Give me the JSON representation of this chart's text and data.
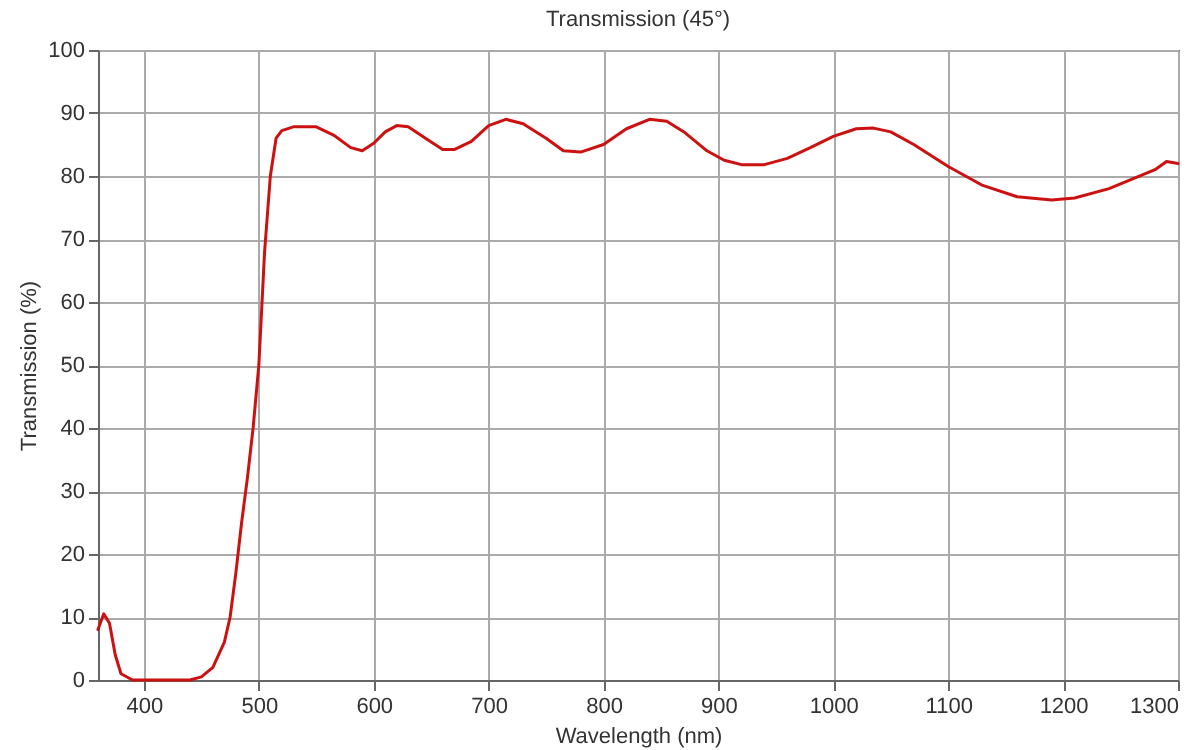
{
  "chart_data": {
    "type": "line",
    "title": "Transmission  (45°)",
    "xlabel": "Wavelength (nm)",
    "ylabel": "Transmission (%)",
    "xlim": [
      360,
      1300
    ],
    "ylim": [
      0,
      100
    ],
    "xticks": [
      400,
      500,
      600,
      700,
      800,
      900,
      1000,
      1100,
      1200,
      1300
    ],
    "yticks": [
      0,
      10,
      20,
      30,
      40,
      50,
      60,
      70,
      80,
      90,
      100
    ],
    "grid": true,
    "series": [
      {
        "color": "#cc1111",
        "x": [
          360,
          365,
          370,
          375,
          380,
          390,
          440,
          450,
          460,
          470,
          475,
          480,
          485,
          490,
          495,
          500,
          505,
          510,
          515,
          520,
          530,
          550,
          565,
          580,
          590,
          600,
          610,
          620,
          630,
          645,
          660,
          670,
          685,
          700,
          715,
          730,
          750,
          765,
          780,
          800,
          820,
          840,
          855,
          870,
          890,
          905,
          920,
          940,
          960,
          980,
          1000,
          1020,
          1035,
          1050,
          1070,
          1100,
          1130,
          1160,
          1190,
          1210,
          1240,
          1260,
          1280,
          1290,
          1300
        ],
        "values": [
          8,
          10.5,
          9,
          4,
          1,
          0,
          0,
          0.5,
          2,
          6,
          10,
          17,
          25,
          32,
          40,
          50,
          68,
          80,
          86,
          87.2,
          87.8,
          87.8,
          86.5,
          84.5,
          84,
          85.2,
          87,
          88,
          87.8,
          86,
          84.2,
          84.2,
          85.5,
          88,
          89,
          88.3,
          86,
          84,
          83.8,
          85,
          87.5,
          89,
          88.7,
          87,
          84,
          82.5,
          81.8,
          81.8,
          82.8,
          84.5,
          86.3,
          87.5,
          87.6,
          87,
          85,
          81.5,
          78.5,
          76.7,
          76.2,
          76.5,
          78,
          79.5,
          81,
          82.3,
          82
        ]
      }
    ]
  }
}
